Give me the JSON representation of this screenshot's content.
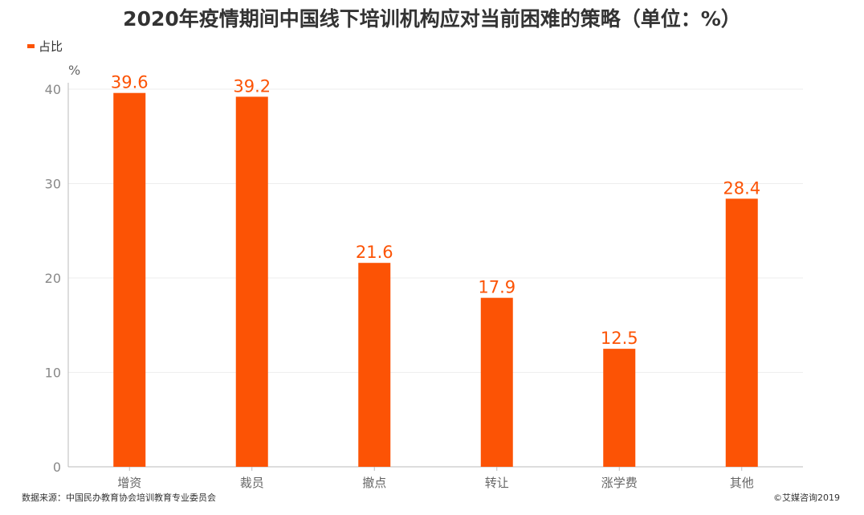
{
  "title": "2020年疫情期间中国线下培训机构应对当前困难的策略（单位：%）",
  "legend_label": "占比",
  "unit_label": "%",
  "source": "数据来源：中国民办教育协会培训教育专业委员会",
  "copyright": "©艾媒咨询2019",
  "colors": {
    "bar": "#fc5305",
    "axis": "#bbbbbb",
    "grid": "#eeeeee"
  },
  "chart_data": {
    "type": "bar",
    "title": "2020年疫情期间中国线下培训机构应对当前困难的策略（单位：%）",
    "categories": [
      "增资",
      "裁员",
      "撤点",
      "转让",
      "涨学费",
      "其他"
    ],
    "series": [
      {
        "name": "占比",
        "values": [
          39.6,
          39.2,
          21.6,
          17.9,
          12.5,
          28.4
        ]
      }
    ],
    "ylabel": "%",
    "ylim": [
      0,
      40
    ],
    "yticks": [
      0,
      10,
      20,
      30,
      40
    ],
    "grid": true,
    "legend_position": "top-left"
  }
}
